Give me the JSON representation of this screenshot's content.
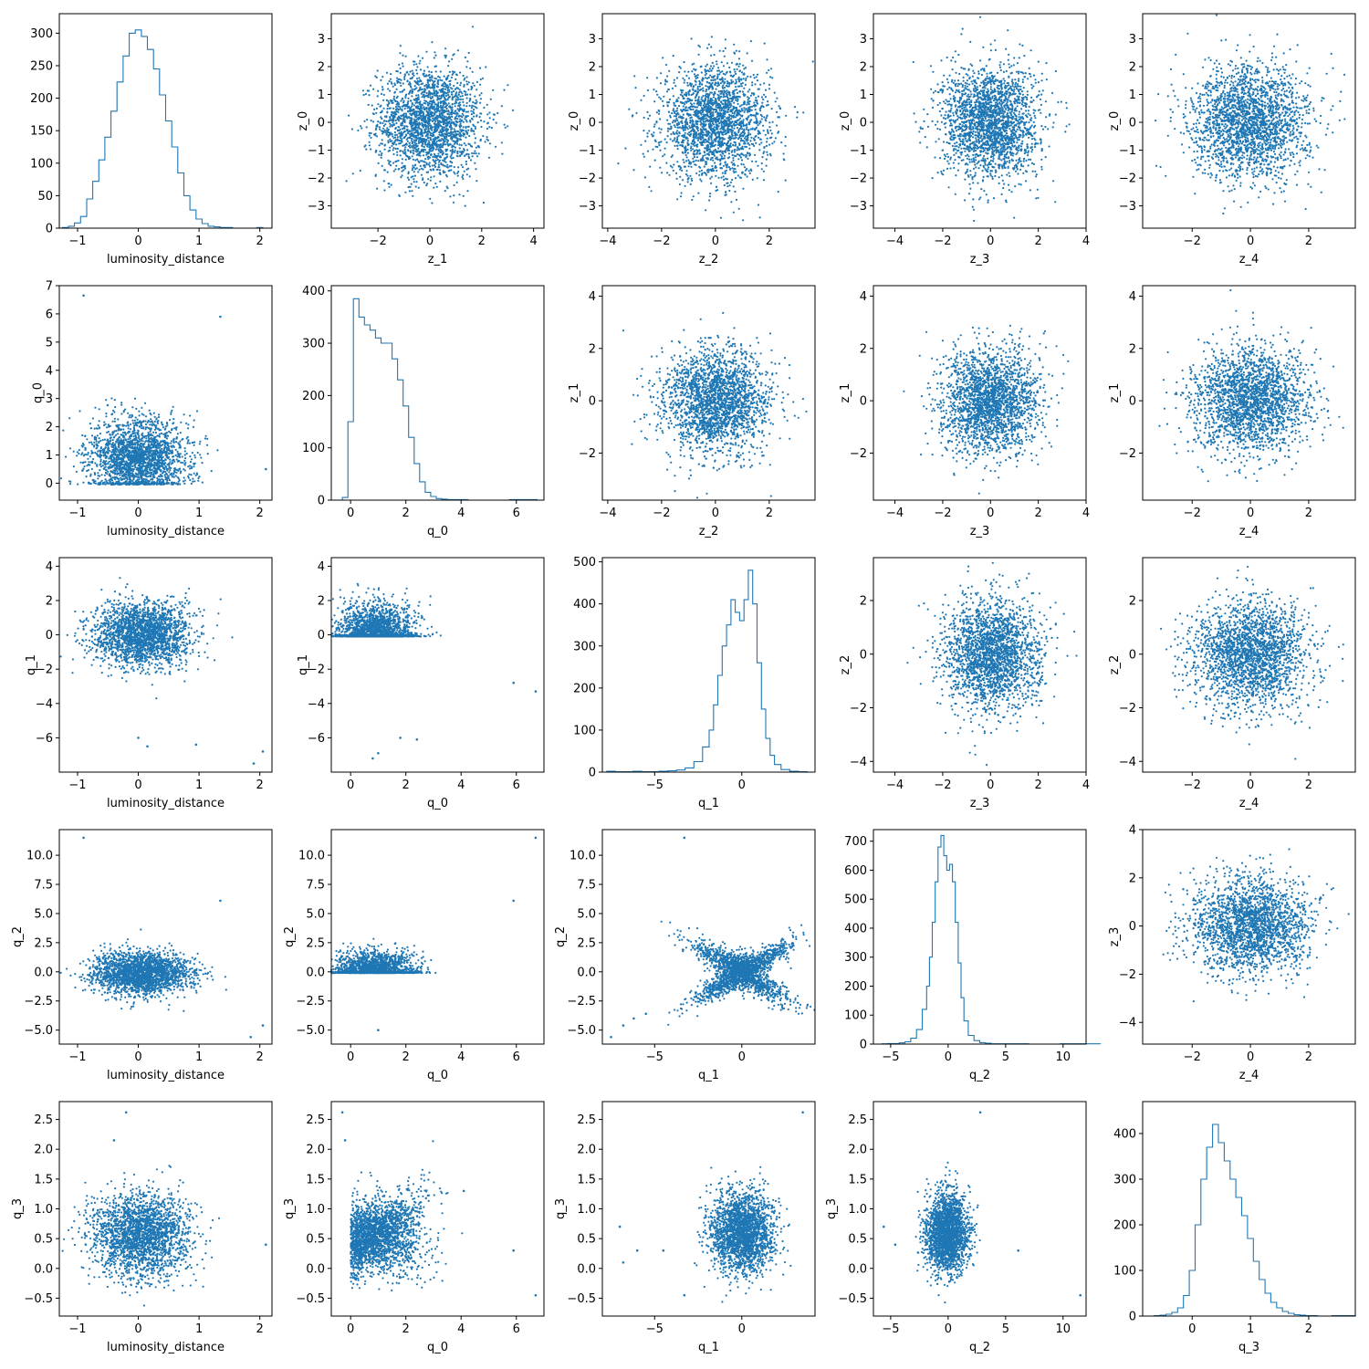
{
  "figure": {
    "accent": "#1f77b4",
    "grid": false,
    "legend": false
  },
  "chart_data": [
    {
      "id": "p00",
      "type": "histogram",
      "xlabel": "luminosity_distance",
      "ylabel": "",
      "xlim": [
        -1.3,
        2.2
      ],
      "ylim": [
        0,
        330
      ],
      "xticks": [
        -1,
        0,
        1,
        2
      ],
      "yticks": [
        0,
        50,
        100,
        150,
        200,
        250,
        300
      ],
      "x": [
        -1.2,
        -1.1,
        -1.0,
        -0.9,
        -0.8,
        -0.7,
        -0.6,
        -0.5,
        -0.4,
        -0.3,
        -0.2,
        -0.1,
        0.0,
        0.1,
        0.2,
        0.3,
        0.4,
        0.5,
        0.6,
        0.7,
        0.8,
        0.9,
        1.0,
        1.1,
        1.2,
        1.3,
        1.4,
        1.5,
        1.6,
        1.7,
        1.8,
        1.9,
        2.0,
        2.1
      ],
      "values": [
        1,
        3,
        8,
        18,
        45,
        72,
        105,
        140,
        180,
        225,
        265,
        300,
        305,
        295,
        275,
        245,
        205,
        165,
        125,
        85,
        50,
        28,
        14,
        7,
        3,
        2,
        1,
        1,
        0,
        0,
        0,
        0,
        1,
        0
      ]
    },
    {
      "id": "p01",
      "type": "scatter",
      "xlabel": "z_1",
      "ylabel": "z_0",
      "xlim": [
        -3.8,
        4.4
      ],
      "ylim": [
        -3.8,
        3.9
      ],
      "xticks": [
        -2,
        0,
        2,
        4
      ],
      "yticks": [
        -3,
        -2,
        -1,
        0,
        1,
        2,
        3
      ],
      "center": [
        0,
        0
      ],
      "spread": [
        1,
        1
      ]
    },
    {
      "id": "p02",
      "type": "scatter",
      "xlabel": "z_2",
      "ylabel": "z_0",
      "xlim": [
        -4.2,
        3.7
      ],
      "ylim": [
        -3.8,
        3.9
      ],
      "xticks": [
        -4,
        -2,
        0,
        2
      ],
      "yticks": [
        -3,
        -2,
        -1,
        0,
        1,
        2,
        3
      ],
      "center": [
        0,
        0
      ],
      "spread": [
        1,
        1
      ]
    },
    {
      "id": "p03",
      "type": "scatter",
      "xlabel": "z_3",
      "ylabel": "z_0",
      "xlim": [
        -4.9,
        4.0
      ],
      "ylim": [
        -3.8,
        3.9
      ],
      "xticks": [
        -4,
        -2,
        0,
        2,
        4
      ],
      "yticks": [
        -3,
        -2,
        -1,
        0,
        1,
        2,
        3
      ],
      "center": [
        0,
        0
      ],
      "spread": [
        1,
        1
      ]
    },
    {
      "id": "p04",
      "type": "scatter",
      "xlabel": "z_4",
      "ylabel": "z_0",
      "xlim": [
        -3.7,
        3.6
      ],
      "ylim": [
        -3.8,
        3.9
      ],
      "xticks": [
        -2,
        0,
        2
      ],
      "yticks": [
        -3,
        -2,
        -1,
        0,
        1,
        2,
        3
      ],
      "center": [
        0,
        0
      ],
      "spread": [
        1,
        1
      ]
    },
    {
      "id": "p10",
      "type": "scatter",
      "xlabel": "luminosity_distance",
      "ylabel": "q_0",
      "xlim": [
        -1.3,
        2.2
      ],
      "ylim": [
        -0.6,
        7.0
      ],
      "xticks": [
        -1,
        0,
        1,
        2
      ],
      "yticks": [
        0,
        1,
        2,
        3,
        4,
        5,
        6,
        7
      ],
      "center": [
        0,
        0.9
      ],
      "spread": [
        0.4,
        0.7
      ],
      "floor": -0.05,
      "outliers": [
        [
          -0.9,
          6.65
        ],
        [
          1.35,
          5.9
        ],
        [
          2.1,
          0.5
        ]
      ]
    },
    {
      "id": "p11",
      "type": "histogram",
      "xlabel": "q_0",
      "ylabel": "",
      "xlim": [
        -0.7,
        7.0
      ],
      "ylim": [
        0,
        410
      ],
      "xticks": [
        0,
        2,
        4,
        6
      ],
      "yticks": [
        0,
        100,
        200,
        300,
        400
      ],
      "x": [
        -0.2,
        0.0,
        0.2,
        0.4,
        0.6,
        0.8,
        1.0,
        1.2,
        1.4,
        1.6,
        1.8,
        2.0,
        2.2,
        2.4,
        2.6,
        2.8,
        3.0,
        3.2,
        3.4,
        3.6,
        3.8,
        4.0,
        4.5,
        5.0,
        5.5,
        6.0,
        6.5
      ],
      "values": [
        5,
        150,
        385,
        350,
        335,
        325,
        310,
        300,
        300,
        270,
        230,
        180,
        120,
        70,
        35,
        15,
        7,
        3,
        2,
        1,
        1,
        1,
        0,
        0,
        0,
        1,
        1
      ]
    },
    {
      "id": "p12",
      "type": "scatter",
      "xlabel": "z_2",
      "ylabel": "z_1",
      "xlim": [
        -4.2,
        3.7
      ],
      "ylim": [
        -3.8,
        4.4
      ],
      "xticks": [
        -4,
        -2,
        0,
        2
      ],
      "yticks": [
        -2,
        0,
        2,
        4
      ],
      "center": [
        0,
        0
      ],
      "spread": [
        1,
        1
      ]
    },
    {
      "id": "p13",
      "type": "scatter",
      "xlabel": "z_3",
      "ylabel": "z_1",
      "xlim": [
        -4.9,
        4.0
      ],
      "ylim": [
        -3.8,
        4.4
      ],
      "xticks": [
        -4,
        -2,
        0,
        2,
        4
      ],
      "yticks": [
        -2,
        0,
        2,
        4
      ],
      "center": [
        0,
        0
      ],
      "spread": [
        1,
        1
      ]
    },
    {
      "id": "p14",
      "type": "scatter",
      "xlabel": "z_4",
      "ylabel": "z_1",
      "xlim": [
        -3.7,
        3.6
      ],
      "ylim": [
        -3.8,
        4.4
      ],
      "xticks": [
        -2,
        0,
        2
      ],
      "yticks": [
        -2,
        0,
        2,
        4
      ],
      "center": [
        0,
        0
      ],
      "spread": [
        1,
        1
      ]
    },
    {
      "id": "p20",
      "type": "scatter",
      "xlabel": "luminosity_distance",
      "ylabel": "q_1",
      "xlim": [
        -1.3,
        2.2
      ],
      "ylim": [
        -8.0,
        4.5
      ],
      "xticks": [
        -1,
        0,
        1,
        2
      ],
      "yticks": [
        -6,
        -4,
        -2,
        0,
        2,
        4
      ],
      "center": [
        0.05,
        0
      ],
      "spread": [
        0.4,
        0.9
      ],
      "outliers": [
        [
          0,
          -6
        ],
        [
          0.15,
          -6.5
        ],
        [
          0.95,
          -6.4
        ],
        [
          1.9,
          -7.5
        ],
        [
          2.05,
          -6.8
        ]
      ]
    },
    {
      "id": "p21",
      "type": "scatter",
      "xlabel": "q_0",
      "ylabel": "q_1",
      "xlim": [
        -0.7,
        7.0
      ],
      "ylim": [
        -8.0,
        4.5
      ],
      "xticks": [
        0,
        2,
        4,
        6
      ],
      "yticks": [
        -6,
        -4,
        -2,
        0,
        2,
        4
      ],
      "center": [
        0.9,
        0
      ],
      "spread": [
        0.7,
        0.9
      ],
      "floor": -0.1,
      "outliers": [
        [
          0.8,
          -7.2
        ],
        [
          1.0,
          -6.9
        ],
        [
          1.8,
          -6.0
        ],
        [
          2.4,
          -6.1
        ],
        [
          5.9,
          -2.8
        ],
        [
          6.7,
          -3.3
        ]
      ]
    },
    {
      "id": "p22",
      "type": "histogram",
      "xlabel": "q_1",
      "ylabel": "",
      "xlim": [
        -8.0,
        4.2
      ],
      "ylim": [
        0,
        510
      ],
      "xticks": [
        -5,
        0
      ],
      "yticks": [
        0,
        100,
        200,
        300,
        400,
        500
      ],
      "x": [
        -7.5,
        -7.0,
        -6.5,
        -6.0,
        -5.5,
        -5.0,
        -4.5,
        -4.0,
        -3.5,
        -3.0,
        -2.5,
        -2.0,
        -1.75,
        -1.5,
        -1.25,
        -1.0,
        -0.75,
        -0.5,
        -0.25,
        0.0,
        0.25,
        0.5,
        0.75,
        1.0,
        1.25,
        1.5,
        1.75,
        2.0,
        2.5,
        3.0,
        3.5
      ],
      "values": [
        2,
        1,
        1,
        2,
        1,
        1,
        2,
        3,
        5,
        10,
        25,
        60,
        100,
        160,
        230,
        300,
        350,
        410,
        380,
        360,
        410,
        480,
        400,
        260,
        150,
        80,
        40,
        18,
        6,
        2,
        1
      ]
    },
    {
      "id": "p23",
      "type": "scatter",
      "xlabel": "z_3",
      "ylabel": "z_2",
      "xlim": [
        -4.9,
        4.0
      ],
      "ylim": [
        -4.4,
        3.6
      ],
      "xticks": [
        -4,
        -2,
        0,
        2,
        4
      ],
      "yticks": [
        -4,
        -2,
        0,
        2
      ],
      "center": [
        0,
        0
      ],
      "spread": [
        1,
        1
      ]
    },
    {
      "id": "p24",
      "type": "scatter",
      "xlabel": "z_4",
      "ylabel": "z_2",
      "xlim": [
        -3.7,
        3.6
      ],
      "ylim": [
        -4.4,
        3.6
      ],
      "xticks": [
        -2,
        0,
        2
      ],
      "yticks": [
        -4,
        -2,
        0,
        2
      ],
      "center": [
        0,
        0
      ],
      "spread": [
        1,
        1
      ]
    },
    {
      "id": "p30",
      "type": "scatter",
      "xlabel": "luminosity_distance",
      "ylabel": "q_2",
      "xlim": [
        -1.3,
        2.2
      ],
      "ylim": [
        -6.2,
        12.2
      ],
      "xticks": [
        -1,
        0,
        1,
        2
      ],
      "yticks": [
        -5.0,
        -2.5,
        0.0,
        2.5,
        5.0,
        7.5,
        10.0
      ],
      "tickDecimals": 1,
      "center": [
        0.05,
        -0.1
      ],
      "spread": [
        0.4,
        0.9
      ],
      "outliers": [
        [
          -0.9,
          11.5
        ],
        [
          1.35,
          6.1
        ],
        [
          2.05,
          -4.6
        ],
        [
          1.85,
          -5.6
        ]
      ]
    },
    {
      "id": "p31",
      "type": "scatter",
      "xlabel": "q_0",
      "ylabel": "q_2",
      "xlim": [
        -0.7,
        7.0
      ],
      "ylim": [
        -6.2,
        12.2
      ],
      "xticks": [
        0,
        2,
        4,
        6
      ],
      "yticks": [
        -5.0,
        -2.5,
        0.0,
        2.5,
        5.0,
        7.5,
        10.0
      ],
      "tickDecimals": 1,
      "center": [
        0.9,
        -0.1
      ],
      "spread": [
        0.7,
        0.9
      ],
      "floor": -0.1,
      "outliers": [
        [
          6.7,
          11.5
        ],
        [
          5.9,
          6.1
        ],
        [
          1.0,
          -5.0
        ]
      ]
    },
    {
      "id": "p32",
      "type": "scatter",
      "xlabel": "q_1",
      "ylabel": "q_2",
      "xlim": [
        -8.0,
        4.2
      ],
      "ylim": [
        -6.2,
        12.2
      ],
      "xticks": [
        -5,
        0
      ],
      "yticks": [
        -5.0,
        -2.5,
        0.0,
        2.5,
        5.0,
        7.5,
        10.0
      ],
      "tickDecimals": 1,
      "shape": "x-cross",
      "outliers": [
        [
          -3.3,
          11.5
        ],
        [
          -7.5,
          -5.6
        ],
        [
          -6.8,
          -4.6
        ],
        [
          -6.2,
          -4.0
        ],
        [
          -5.5,
          -3.6
        ]
      ]
    },
    {
      "id": "p33",
      "type": "histogram",
      "xlabel": "q_2",
      "ylabel": "",
      "xlim": [
        -6.5,
        12.0
      ],
      "ylim": [
        0,
        740
      ],
      "xticks": [
        -5,
        0,
        5,
        10
      ],
      "yticks": [
        0,
        100,
        200,
        300,
        400,
        500,
        600,
        700
      ],
      "x": [
        -5.5,
        -5.0,
        -4.5,
        -4.0,
        -3.5,
        -3.0,
        -2.5,
        -2.0,
        -1.75,
        -1.5,
        -1.25,
        -1.0,
        -0.75,
        -0.5,
        -0.25,
        0.0,
        0.25,
        0.5,
        0.75,
        1.0,
        1.25,
        1.5,
        2.0,
        2.5,
        3.0,
        3.5,
        4.0,
        5.0,
        6.0,
        8.0,
        11.5
      ],
      "values": [
        1,
        2,
        2,
        4,
        8,
        20,
        50,
        120,
        200,
        300,
        420,
        560,
        680,
        720,
        650,
        600,
        620,
        560,
        420,
        280,
        160,
        80,
        30,
        12,
        5,
        3,
        1,
        1,
        1,
        0,
        1
      ]
    },
    {
      "id": "p34",
      "type": "scatter",
      "xlabel": "z_4",
      "ylabel": "z_3",
      "xlim": [
        -3.7,
        3.6
      ],
      "ylim": [
        -4.9,
        4.0
      ],
      "xticks": [
        -2,
        0,
        2
      ],
      "yticks": [
        -4,
        -2,
        0,
        2,
        4
      ],
      "center": [
        0,
        0
      ],
      "spread": [
        1,
        1
      ]
    },
    {
      "id": "p40",
      "type": "scatter",
      "xlabel": "luminosity_distance",
      "ylabel": "q_3",
      "xlim": [
        -1.3,
        2.2
      ],
      "ylim": [
        -0.8,
        2.8
      ],
      "xticks": [
        -1,
        0,
        1,
        2
      ],
      "yticks": [
        -0.5,
        0.0,
        0.5,
        1.0,
        1.5,
        2.0,
        2.5
      ],
      "tickDecimals": 1,
      "center": [
        0.05,
        0.55
      ],
      "spread": [
        0.4,
        0.35
      ],
      "outliers": [
        [
          -0.2,
          2.62
        ],
        [
          -0.4,
          2.15
        ],
        [
          2.1,
          0.4
        ]
      ]
    },
    {
      "id": "p41",
      "type": "scatter",
      "xlabel": "q_0",
      "ylabel": "q_3",
      "xlim": [
        -0.7,
        7.0
      ],
      "ylim": [
        -0.8,
        2.8
      ],
      "xticks": [
        0,
        2,
        4,
        6
      ],
      "yticks": [
        -0.5,
        0.0,
        0.5,
        1.0,
        1.5,
        2.0,
        2.5
      ],
      "tickDecimals": 1,
      "shape": "v-shape",
      "outliers": [
        [
          -0.3,
          2.62
        ],
        [
          -0.2,
          2.15
        ],
        [
          6.7,
          -0.45
        ],
        [
          5.9,
          0.3
        ],
        [
          4.1,
          1.3
        ]
      ]
    },
    {
      "id": "p42",
      "type": "scatter",
      "xlabel": "q_1",
      "ylabel": "q_3",
      "xlim": [
        -8.0,
        4.2
      ],
      "ylim": [
        -0.8,
        2.8
      ],
      "xticks": [
        -5,
        0
      ],
      "yticks": [
        -0.5,
        0.0,
        0.5,
        1.0,
        1.5,
        2.0,
        2.5
      ],
      "tickDecimals": 1,
      "center": [
        0,
        0.6
      ],
      "spread": [
        0.9,
        0.33
      ],
      "outliers": [
        [
          3.5,
          2.62
        ],
        [
          -7.0,
          0.7
        ],
        [
          -6.8,
          0.1
        ],
        [
          -4.5,
          0.3
        ],
        [
          -3.3,
          -0.45
        ],
        [
          -6.0,
          0.3
        ]
      ]
    },
    {
      "id": "p43",
      "type": "scatter",
      "xlabel": "q_2",
      "ylabel": "q_3",
      "xlim": [
        -6.5,
        12.0
      ],
      "ylim": [
        -0.8,
        2.8
      ],
      "xticks": [
        -5,
        0,
        5,
        10
      ],
      "yticks": [
        -0.5,
        0.0,
        0.5,
        1.0,
        1.5,
        2.0,
        2.5
      ],
      "tickDecimals": 1,
      "center": [
        -0.1,
        0.6
      ],
      "spread": [
        0.9,
        0.33
      ],
      "outliers": [
        [
          2.8,
          2.62
        ],
        [
          11.5,
          -0.45
        ],
        [
          6.1,
          0.3
        ],
        [
          -5.6,
          0.7
        ],
        [
          -4.6,
          0.4
        ]
      ]
    },
    {
      "id": "p44",
      "type": "histogram",
      "xlabel": "q_3",
      "ylabel": "",
      "xlim": [
        -0.85,
        2.8
      ],
      "ylim": [
        0,
        470
      ],
      "xticks": [
        0,
        1,
        2
      ],
      "yticks": [
        0,
        100,
        200,
        300,
        400
      ],
      "x": [
        -0.6,
        -0.5,
        -0.4,
        -0.3,
        -0.2,
        -0.1,
        0.0,
        0.1,
        0.2,
        0.3,
        0.4,
        0.5,
        0.6,
        0.7,
        0.8,
        0.9,
        1.0,
        1.1,
        1.2,
        1.3,
        1.4,
        1.5,
        1.6,
        1.7,
        1.8,
        1.9,
        2.0,
        2.1,
        2.2,
        2.6
      ],
      "values": [
        1,
        2,
        4,
        8,
        18,
        45,
        100,
        200,
        300,
        370,
        420,
        380,
        340,
        300,
        260,
        220,
        170,
        120,
        80,
        50,
        30,
        18,
        10,
        6,
        3,
        2,
        1,
        1,
        0,
        1
      ]
    }
  ]
}
